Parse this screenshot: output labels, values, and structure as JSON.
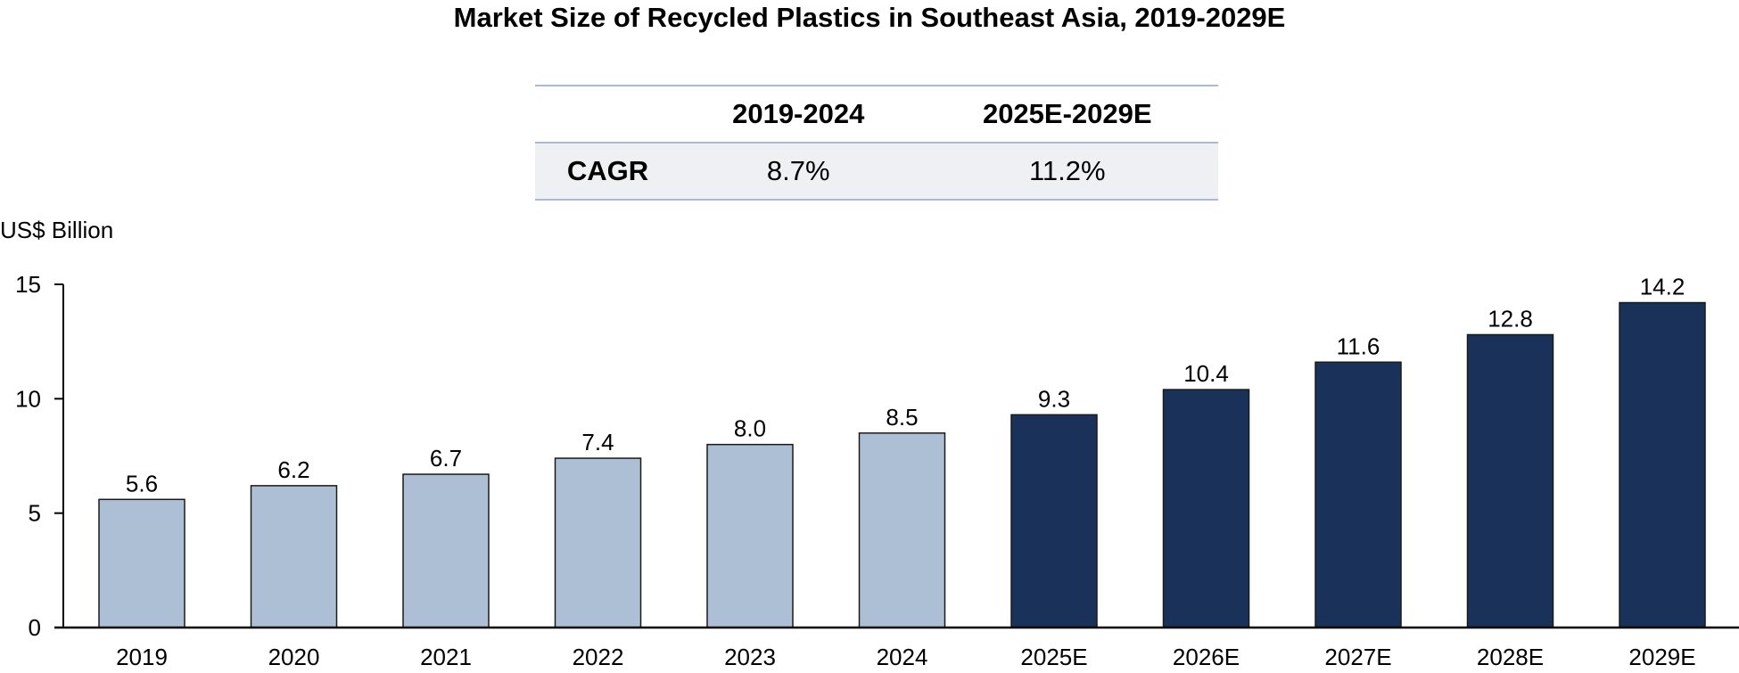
{
  "chart_data": {
    "type": "bar",
    "title": "Market Size of Recycled Plastics in Southeast Asia, 2019-2029E",
    "ylabel": "US$ Billion",
    "xlabel": "",
    "ylim": [
      0,
      15
    ],
    "yticks": [
      0,
      5,
      10,
      15
    ],
    "grid": false,
    "categories": [
      "2019",
      "2020",
      "2021",
      "2022",
      "2023",
      "2024",
      "2025E",
      "2026E",
      "2027E",
      "2028E",
      "2029E"
    ],
    "values": [
      5.6,
      6.2,
      6.7,
      7.4,
      8.0,
      8.5,
      9.3,
      10.4,
      11.6,
      12.8,
      14.2
    ],
    "labels": [
      "5.6",
      "6.2",
      "6.7",
      "7.4",
      "8.0",
      "8.5",
      "9.3",
      "10.4",
      "11.6",
      "12.8",
      "14.2"
    ],
    "series_type": [
      "actual",
      "actual",
      "actual",
      "actual",
      "actual",
      "actual",
      "estimate",
      "estimate",
      "estimate",
      "estimate",
      "estimate"
    ],
    "colors": {
      "actual": "#adbfd4",
      "estimate": "#1a3259"
    }
  },
  "cagr_table": {
    "headers": [
      "",
      "2019-2024",
      "2025E-2029E"
    ],
    "row_label": "CAGR",
    "values": [
      "8.7%",
      "11.2%"
    ]
  }
}
